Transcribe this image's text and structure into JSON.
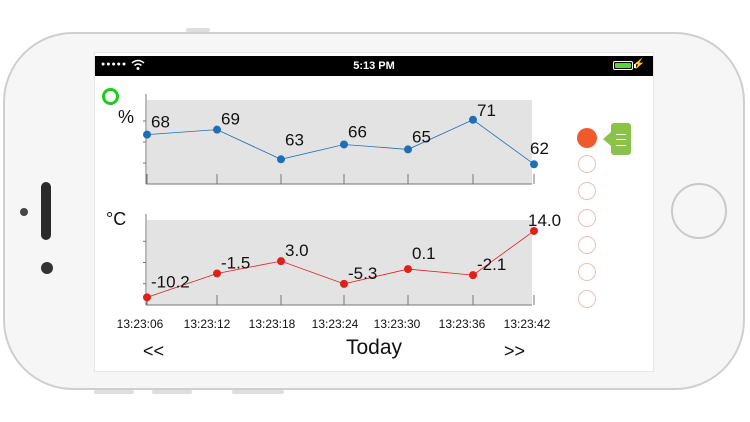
{
  "status_bar": {
    "time": "5:13 PM",
    "signal_dots": "●●●●●"
  },
  "humidity_chart": {
    "unit": "%",
    "values": [
      68,
      69,
      63,
      66,
      65,
      71,
      62
    ],
    "value_labels": [
      "68",
      "69",
      "63",
      "66",
      "65",
      "71",
      "62"
    ],
    "color": "#1f6fb8"
  },
  "temperature_chart": {
    "unit": "°C",
    "values": [
      -10.2,
      -1.5,
      3.0,
      -5.3,
      0.1,
      -2.1,
      14.0
    ],
    "value_labels": [
      "-10.2",
      "-1.5",
      "3.0",
      "-5.3",
      "0.1",
      "-2.1",
      "14.0"
    ],
    "color": "#e0201a"
  },
  "chart_data": [
    {
      "type": "line",
      "x": [
        "13:23:06",
        "13:23:12",
        "13:23:18",
        "13:23:24",
        "13:23:30",
        "13:23:36",
        "13:23:42"
      ],
      "values": [
        68,
        69,
        63,
        66,
        65,
        71,
        62
      ],
      "ylabel": "%",
      "grid": false
    },
    {
      "type": "line",
      "x": [
        "13:23:06",
        "13:23:12",
        "13:23:18",
        "13:23:24",
        "13:23:30",
        "13:23:36",
        "13:23:42"
      ],
      "values": [
        -10.2,
        -1.5,
        3.0,
        -5.3,
        0.1,
        -2.1,
        14.0
      ],
      "ylabel": "°C",
      "grid": false
    }
  ],
  "time_labels": [
    "13:23:06",
    "13:23:12",
    "13:23:18",
    "13:23:24",
    "13:23:30",
    "13:23:36",
    "13:23:42"
  ],
  "nav": {
    "prev": "<<",
    "center": "Today",
    "next": ">>"
  },
  "sensors": {
    "count": 7,
    "active_index": 0,
    "active_color": "#ee5a2b"
  },
  "live_indicator_color": "#16d116",
  "drawer_tab_color": "#8bc34a"
}
